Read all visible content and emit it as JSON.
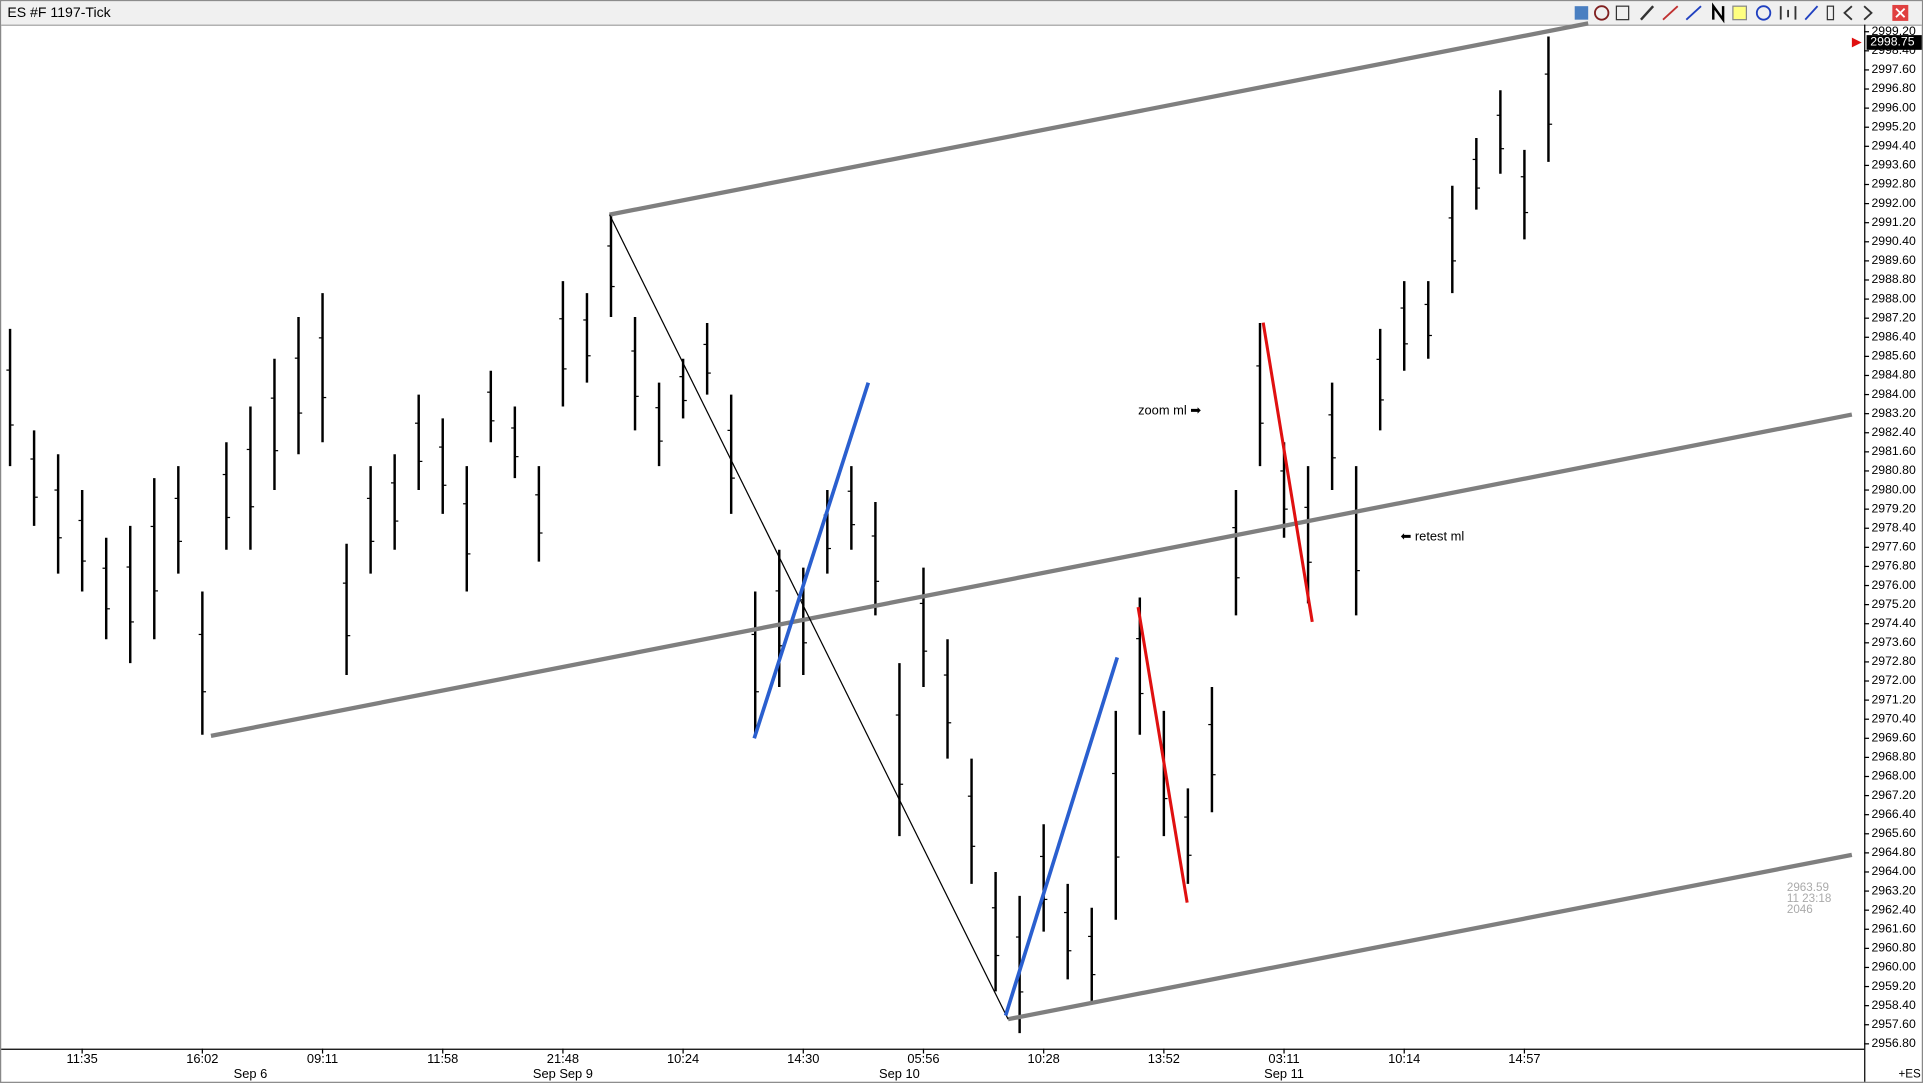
{
  "chart_data": {
    "type": "hilo",
    "title": "ES #F 1197-Tick",
    "color": "#000000",
    "categories": [
      null,
      null,
      null,
      "11:35",
      null,
      null,
      null,
      null,
      "16:02",
      null,
      null,
      null,
      null,
      "09:11",
      null,
      null,
      null,
      null,
      "11:58",
      null,
      null,
      null,
      null,
      "21:48",
      null,
      null,
      null,
      null,
      "10:24",
      null,
      null,
      null,
      null,
      "14:30",
      null,
      null,
      null,
      null,
      "05:56",
      null,
      null,
      null,
      null,
      "10:28",
      null,
      null,
      null,
      null,
      "13:52",
      null,
      null,
      null,
      null,
      "03:11",
      null,
      null,
      null,
      null,
      "10:14",
      null,
      null,
      null,
      null,
      "14:57",
      null
    ],
    "dates": [
      null,
      null,
      null,
      null,
      null,
      null,
      null,
      null,
      null,
      null,
      "Sep 6",
      null,
      null,
      null,
      null,
      null,
      null,
      null,
      null,
      null,
      null,
      null,
      null,
      "Sep Sep 9",
      null,
      null,
      null,
      null,
      null,
      null,
      null,
      null,
      null,
      null,
      null,
      null,
      null,
      "Sep 10",
      null,
      null,
      null,
      null,
      null,
      null,
      null,
      null,
      null,
      null,
      null,
      null,
      null,
      null,
      null,
      "Sep 11",
      null,
      null,
      null,
      null,
      null,
      null,
      null,
      null,
      null,
      null,
      null
    ],
    "high": [
      2986.75,
      2982.5,
      2981.5,
      2980,
      2978,
      2978.5,
      2980.5,
      2981,
      2975.75,
      2982,
      2983.5,
      2985.5,
      2987.25,
      2988.25,
      2977.75,
      2981,
      2981.5,
      2984,
      2983,
      2981,
      2985,
      2983.5,
      2981,
      2988.75,
      2988.25,
      2991.5,
      2987.25,
      2984.5,
      2985.5,
      2987,
      2984,
      2975.75,
      2977.5,
      2976.75,
      2980,
      2981,
      2979.5,
      2972.75,
      2976.75,
      2973.75,
      2968.75,
      2964,
      2963,
      2966,
      2963.5,
      2962.5,
      2970.75,
      2975.5,
      2970.75,
      2967.5,
      2971.75,
      2980,
      2987,
      2982,
      2981,
      2984.5,
      2981,
      2986.75,
      2988.75,
      2988.75,
      2992.75,
      2994.75,
      2996.75,
      2994.25,
      2999
    ],
    "low": [
      2981,
      2978.5,
      2976.5,
      2975.75,
      2973.75,
      2972.75,
      2973.75,
      2976.5,
      2969.75,
      2977.5,
      2977.5,
      2980,
      2981.5,
      2982,
      2972.25,
      2976.5,
      2977.5,
      2980,
      2979,
      2975.75,
      2982,
      2980.5,
      2977,
      2983.5,
      2984.5,
      2987.25,
      2982.5,
      2981,
      2983,
      2984,
      2979,
      2969.75,
      2971.75,
      2972.25,
      2976.5,
      2977.5,
      2974.75,
      2965.5,
      2971.75,
      2968.75,
      2963.5,
      2959,
      2957.25,
      2961.5,
      2959.5,
      2958.5,
      2962,
      2969.75,
      2965.5,
      2963.5,
      2966.5,
      2974.75,
      2981,
      2978,
      2975.25,
      2980,
      2974.75,
      2982.5,
      2985,
      2985.5,
      2988.25,
      2991.75,
      2993.25,
      2990.5,
      2993.75
    ],
    "ylim": [
      2956.6,
      2999.5
    ],
    "yticks": [
      {
        "value": 2956.8,
        "label": "2956.80"
      },
      {
        "value": 2957.6,
        "label": "2957.60"
      },
      {
        "value": 2958.4,
        "label": "2958.40"
      },
      {
        "value": 2959.2,
        "label": "2959.20"
      },
      {
        "value": 2960,
        "label": "2960.00"
      },
      {
        "value": 2960.8,
        "label": "2960.80"
      },
      {
        "value": 2961.6,
        "label": "2961.60"
      },
      {
        "value": 2962.4,
        "label": "2962.40"
      },
      {
        "value": 2963.2,
        "label": "2963.20"
      },
      {
        "value": 2964,
        "label": "2964.00"
      },
      {
        "value": 2964.8,
        "label": "2964.80"
      },
      {
        "value": 2965.6,
        "label": "2965.60"
      },
      {
        "value": 2966.4,
        "label": "2966.40"
      },
      {
        "value": 2967.2,
        "label": "2967.20"
      },
      {
        "value": 2968,
        "label": "2968.00"
      },
      {
        "value": 2968.8,
        "label": "2968.80"
      },
      {
        "value": 2969.6,
        "label": "2969.60"
      },
      {
        "value": 2970.4,
        "label": "2970.40"
      },
      {
        "value": 2971.2,
        "label": "2971.20"
      },
      {
        "value": 2972,
        "label": "2972.00"
      },
      {
        "value": 2972.8,
        "label": "2972.80"
      },
      {
        "value": 2973.6,
        "label": "2973.60"
      },
      {
        "value": 2974.4,
        "label": "2974.40"
      },
      {
        "value": 2975.2,
        "label": "2975.20"
      },
      {
        "value": 2976,
        "label": "2976.00"
      },
      {
        "value": 2976.8,
        "label": "2976.80"
      },
      {
        "value": 2977.6,
        "label": "2977.60"
      },
      {
        "value": 2978.4,
        "label": "2978.40"
      },
      {
        "value": 2979.2,
        "label": "2979.20"
      },
      {
        "value": 2980,
        "label": "2980.00"
      },
      {
        "value": 2980.8,
        "label": "2980.80"
      },
      {
        "value": 2981.6,
        "label": "2981.60"
      },
      {
        "value": 2982.4,
        "label": "2982.40"
      },
      {
        "value": 2983.2,
        "label": "2983.20"
      },
      {
        "value": 2984,
        "label": "2984.00"
      },
      {
        "value": 2984.8,
        "label": "2984.80"
      },
      {
        "value": 2985.6,
        "label": "2985.60"
      },
      {
        "value": 2986.4,
        "label": "2986.40"
      },
      {
        "value": 2987.2,
        "label": "2987.20"
      },
      {
        "value": 2988,
        "label": "2988.00"
      },
      {
        "value": 2988.8,
        "label": "2988.80"
      },
      {
        "value": 2989.6,
        "label": "2989.60"
      },
      {
        "value": 2990.4,
        "label": "2990.40"
      },
      {
        "value": 2991.2,
        "label": "2991.20"
      },
      {
        "value": 2992,
        "label": "2992.00"
      },
      {
        "value": 2992.8,
        "label": "2992.80"
      },
      {
        "value": 2993.6,
        "label": "2993.60"
      },
      {
        "value": 2994.4,
        "label": "2994.40"
      },
      {
        "value": 2995.2,
        "label": "2995.20"
      },
      {
        "value": 2996,
        "label": "2996.00"
      },
      {
        "value": 2996.8,
        "label": "2996.80"
      },
      {
        "value": 2997.6,
        "label": "2997.60"
      },
      {
        "value": 2998.4,
        "label": "2998.40"
      },
      {
        "value": 2999.2,
        "label": "2999.20"
      }
    ],
    "last_price": 2998.75,
    "annotations": [
      "zoom ml ➡",
      "⬅ retest ml"
    ],
    "info_box": [
      "2963.59",
      "11 23:18",
      "2046"
    ],
    "symbol_label": "+ES"
  }
}
